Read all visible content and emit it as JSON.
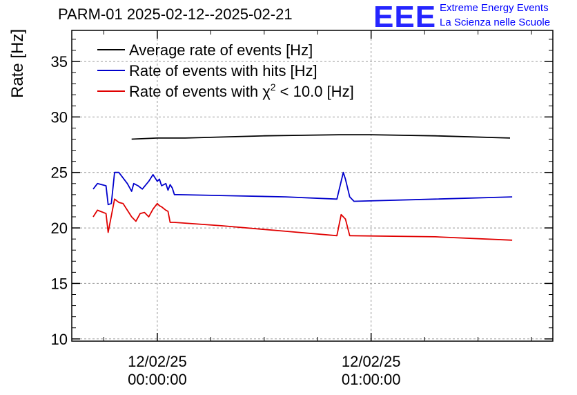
{
  "header": {
    "title": "PARM-01 2025-02-12--2025-02-21",
    "logo_text": "EEE",
    "org_line1": "Extreme Energy Events",
    "org_line2": "La Scienza nelle Scuole",
    "logo_color": "#0000ff"
  },
  "chart_data": {
    "type": "line",
    "title": "PARM-01 2025-02-12--2025-02-21",
    "xlabel": "",
    "ylabel": "Rate [Hz]",
    "ylim": [
      9.8,
      37.8
    ],
    "xlim": [
      -0.4,
      1.85
    ],
    "x_unit": "hours since 12/02/25 00:00:00",
    "yticks": [
      10,
      15,
      20,
      25,
      30,
      35
    ],
    "ytick_labels": [
      "10",
      "15",
      "20",
      "25",
      "30",
      "35"
    ],
    "xticks": [
      0,
      1
    ],
    "xtick_labels": [
      {
        "date": "12/02/25",
        "time": "00:00:00"
      },
      {
        "date": "12/02/25",
        "time": "01:00:00"
      }
    ],
    "grid": true,
    "legend_position": "top-left",
    "series": [
      {
        "name": "Average rate of events [Hz]",
        "color": "#000000",
        "x": [
          -0.12,
          0.0,
          0.13,
          0.5,
          0.85,
          1.0,
          1.3,
          1.65
        ],
        "values": [
          28.0,
          28.1,
          28.1,
          28.3,
          28.4,
          28.4,
          28.3,
          28.1
        ]
      },
      {
        "name": "Rate of events with hits [Hz]",
        "color": "#0000cc",
        "x": [
          -0.3,
          -0.28,
          -0.24,
          -0.23,
          -0.215,
          -0.2,
          -0.18,
          -0.14,
          -0.12,
          -0.11,
          -0.09,
          -0.07,
          -0.04,
          -0.02,
          0.0,
          0.01,
          0.02,
          0.04,
          0.05,
          0.06,
          0.07,
          0.08,
          0.1,
          0.35,
          0.6,
          0.84,
          0.87,
          0.88,
          0.9,
          0.92,
          1.3,
          1.66
        ],
        "values": [
          23.5,
          24.0,
          23.8,
          22.1,
          22.2,
          25.0,
          25.0,
          24.0,
          23.3,
          24.0,
          23.8,
          23.5,
          24.2,
          24.8,
          24.2,
          24.4,
          23.8,
          24.0,
          23.4,
          23.9,
          23.6,
          23.0,
          23.0,
          22.9,
          22.8,
          22.6,
          25.0,
          24.4,
          22.8,
          22.4,
          22.6,
          22.8
        ]
      },
      {
        "name": "Rate of events with χ² < 10.0 [Hz]",
        "legend_text": "Rate of events with χ",
        "legend_sup": "2",
        "legend_tail": " < 10.0 [Hz]",
        "color": "#e00000",
        "x": [
          -0.3,
          -0.28,
          -0.24,
          -0.23,
          -0.2,
          -0.18,
          -0.16,
          -0.14,
          -0.12,
          -0.1,
          -0.08,
          -0.06,
          -0.04,
          -0.02,
          0.0,
          0.01,
          0.02,
          0.04,
          0.05,
          0.06,
          0.08,
          0.3,
          0.6,
          0.84,
          0.86,
          0.88,
          0.9,
          1.3,
          1.66
        ],
        "values": [
          21.0,
          21.6,
          21.3,
          19.6,
          22.6,
          22.3,
          22.2,
          21.6,
          21.0,
          20.6,
          21.3,
          21.4,
          21.0,
          21.7,
          22.2,
          22.0,
          21.9,
          21.6,
          21.5,
          20.5,
          20.5,
          20.2,
          19.7,
          19.3,
          21.2,
          20.8,
          19.3,
          19.2,
          18.9
        ]
      }
    ]
  }
}
